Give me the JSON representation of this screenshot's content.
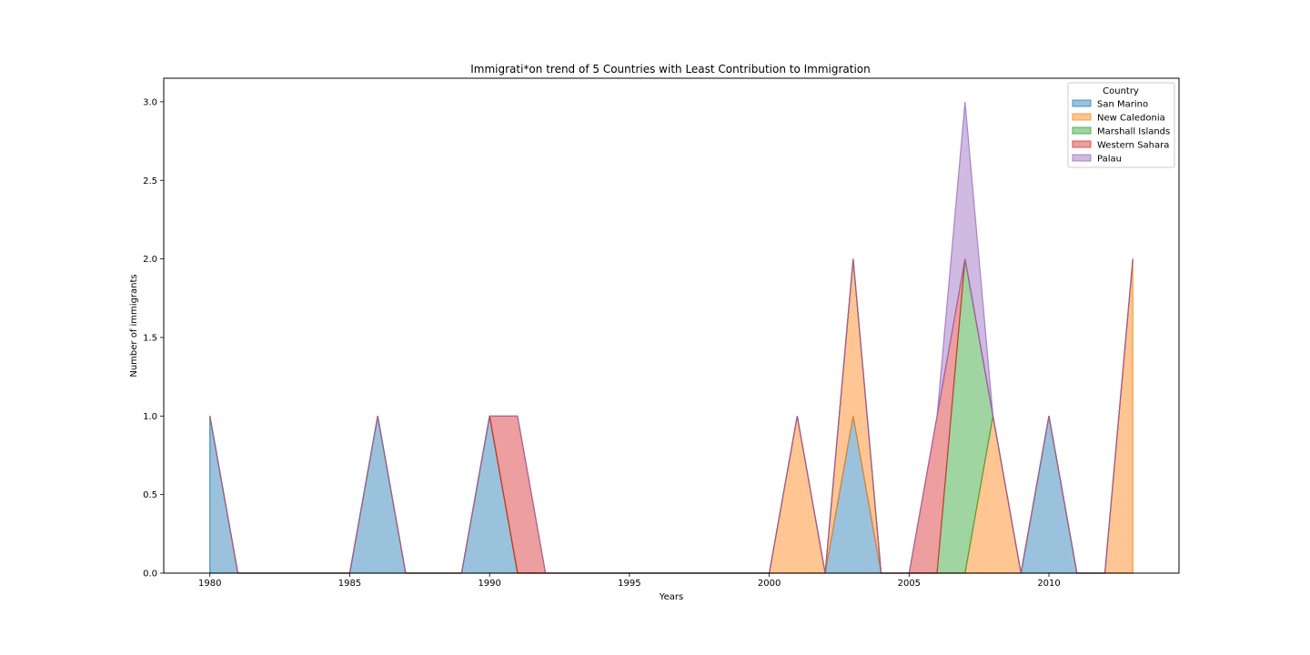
{
  "chart_data": {
    "type": "area",
    "stacked": true,
    "title": "Immigrati*on trend of 5 Countries with Least Contribution to Immigration",
    "xlabel": "Years",
    "ylabel": "Number of immigrants",
    "xlim": [
      1978.35,
      2014.65
    ],
    "ylim": [
      0,
      3.15
    ],
    "x": [
      1980,
      1981,
      1982,
      1983,
      1984,
      1985,
      1986,
      1987,
      1988,
      1989,
      1990,
      1991,
      1992,
      1993,
      1994,
      1995,
      1996,
      1997,
      1998,
      1999,
      2000,
      2001,
      2002,
      2003,
      2004,
      2005,
      2006,
      2007,
      2008,
      2009,
      2010,
      2011,
      2012,
      2013
    ],
    "x_ticks": [
      1980,
      1985,
      1990,
      1995,
      2000,
      2005,
      2010
    ],
    "y_ticks": [
      "0.0",
      "0.5",
      "1.0",
      "1.5",
      "2.0",
      "2.5",
      "3.0"
    ],
    "grid": false,
    "legend": {
      "title": "Country",
      "placement": "top-right"
    },
    "alpha": 0.45,
    "series": [
      {
        "name": "San Marino",
        "color": "#1f77b4",
        "values": [
          1,
          0,
          0,
          0,
          0,
          0,
          1,
          0,
          0,
          0,
          1,
          0,
          0,
          0,
          0,
          0,
          0,
          0,
          0,
          0,
          0,
          0,
          0,
          1,
          0,
          0,
          0,
          0,
          0,
          0,
          1,
          0,
          0,
          0
        ]
      },
      {
        "name": "New Caledonia",
        "color": "#ff7f0e",
        "values": [
          0,
          0,
          0,
          0,
          0,
          0,
          0,
          0,
          0,
          0,
          0,
          0,
          0,
          0,
          0,
          0,
          0,
          0,
          0,
          0,
          0,
          1,
          0,
          1,
          0,
          0,
          0,
          0,
          1,
          0,
          0,
          0,
          0,
          2
        ]
      },
      {
        "name": "Marshall Islands",
        "color": "#2ca02c",
        "values": [
          0,
          0,
          0,
          0,
          0,
          0,
          0,
          0,
          0,
          0,
          0,
          0,
          0,
          0,
          0,
          0,
          0,
          0,
          0,
          0,
          0,
          0,
          0,
          0,
          0,
          0,
          0,
          2,
          0,
          0,
          0,
          0,
          0,
          0
        ]
      },
      {
        "name": "Western Sahara",
        "color": "#d62728",
        "values": [
          0,
          0,
          0,
          0,
          0,
          0,
          0,
          0,
          0,
          0,
          0,
          1,
          0,
          0,
          0,
          0,
          0,
          0,
          0,
          0,
          0,
          0,
          0,
          0,
          0,
          0,
          1,
          0,
          0,
          0,
          0,
          0,
          0,
          0
        ]
      },
      {
        "name": "Palau",
        "color": "#9467bd",
        "values": [
          0,
          0,
          0,
          0,
          0,
          0,
          0,
          0,
          0,
          0,
          0,
          0,
          0,
          0,
          0,
          0,
          0,
          0,
          0,
          0,
          0,
          0,
          0,
          0,
          0,
          0,
          0,
          1,
          0,
          0,
          0,
          0,
          0,
          0
        ]
      }
    ]
  }
}
